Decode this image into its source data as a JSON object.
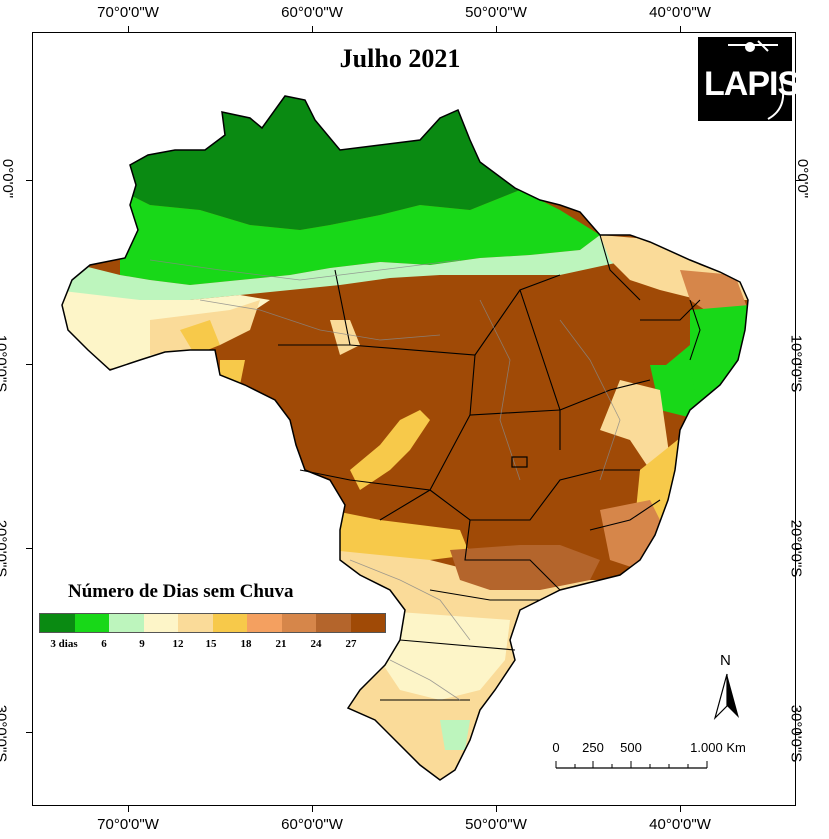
{
  "title": "Julho 2021",
  "logo_text": "LAPIS",
  "coords": {
    "top": [
      "70°0'0\"W",
      "60°0'0\"W",
      "50°0'0\"W",
      "40°0'0\"W"
    ],
    "bottom": [
      "70°0'0\"W",
      "60°0'0\"W",
      "50°0'0\"W",
      "40°0'0\"W"
    ],
    "left": [
      "0°0'0\"",
      "10°0'0\"S",
      "20°0'0\"S",
      "30°0'0\"S"
    ],
    "right": [
      "0°0'0\"",
      "10°0'0\"S",
      "20°0'0\"S",
      "30°0'0\"S"
    ]
  },
  "legend": {
    "title": "Número de Dias sem Chuva",
    "colors": [
      "#0a8a12",
      "#18d818",
      "#bdf5bd",
      "#fdf5c8",
      "#fadb99",
      "#f7c94a",
      "#f4a060",
      "#d6864a",
      "#b4652c",
      "#a04a06"
    ],
    "labels": [
      "3 dias",
      "6",
      "9",
      "12",
      "15",
      "18",
      "21",
      "24",
      "27"
    ]
  },
  "north_label": "N",
  "scale": {
    "labels": [
      "0",
      "250",
      "500",
      "1.000 Km"
    ]
  }
}
